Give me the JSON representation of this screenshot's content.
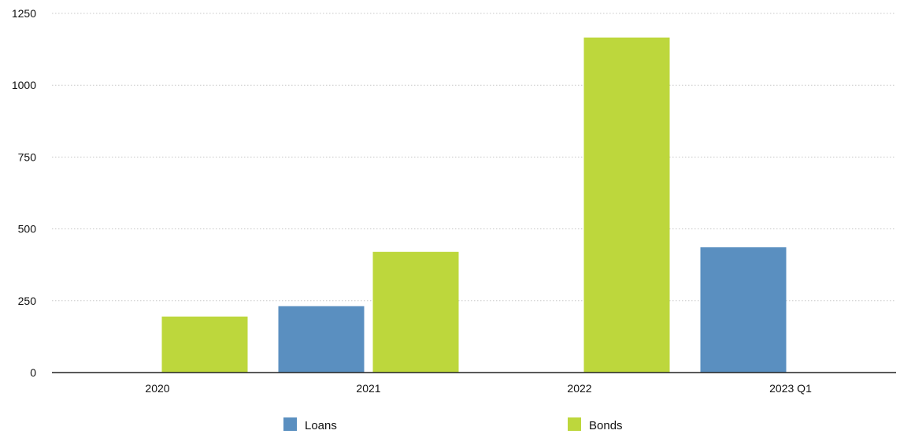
{
  "chart_data": {
    "type": "bar",
    "title": "",
    "xlabel": "",
    "ylabel": "",
    "categories": [
      "2020",
      "2021",
      "2022",
      "2023 Q1"
    ],
    "series": [
      {
        "name": "Loans",
        "color": "#5a8fc0",
        "values": [
          null,
          231,
          null,
          436
        ]
      },
      {
        "name": "Bonds",
        "color": "#bdd73c",
        "values": [
          195,
          420,
          1166,
          null
        ]
      }
    ],
    "ylim": [
      0,
      1250
    ],
    "yticks": [
      0,
      250,
      500,
      750,
      1000,
      1250
    ],
    "grid": true,
    "legend_position": "bottom"
  }
}
